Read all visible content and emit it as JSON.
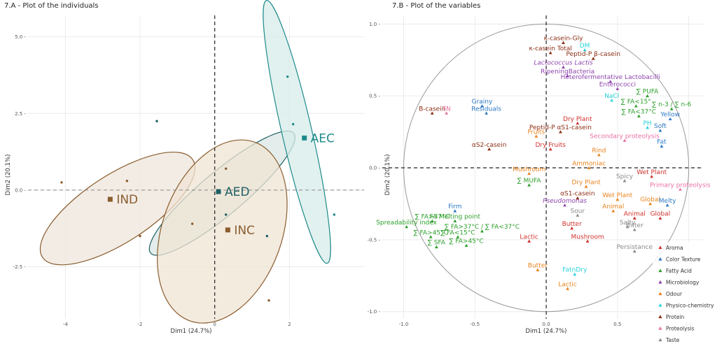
{
  "chart_data": [
    {
      "type": "scatter",
      "title": "7.A - Plot of the individuals",
      "xlabel": "Dim1 (24.7%)",
      "ylabel": "Dim2 (20.1%)",
      "xlim": [
        -5,
        4
      ],
      "ylim": [
        -4.2,
        5.7
      ],
      "x_ticks": [
        -4,
        -2,
        0,
        2
      ],
      "y_ticks": [
        -2.5,
        0.0,
        2.5,
        5.0
      ],
      "x_tick_labels": [
        "-4",
        "-2",
        "0",
        "2"
      ],
      "y_tick_labels": [
        "-2.5 -",
        "0.0 -",
        "2.5 -",
        "5.0 -"
      ],
      "groups": [
        {
          "name": "IND",
          "color": "#8a5d2e",
          "fill": "#ede6dc",
          "center": [
            -2.8,
            -0.3
          ],
          "ellipse": {
            "cx": -2.6,
            "cy": -0.6,
            "rx": 2.4,
            "ry": 1.1,
            "rot": -33
          },
          "points": [
            [
              -4.1,
              0.25
            ],
            [
              -2.35,
              0.3
            ],
            [
              -2.0,
              -1.5
            ]
          ]
        },
        {
          "name": "AED",
          "color": "#1f5f63",
          "fill": "#dbe7e6",
          "center": [
            0.1,
            -0.05
          ],
          "ellipse": {
            "cx": 0.2,
            "cy": -0.1,
            "rx": 2.5,
            "ry": 0.7,
            "rot": -40
          },
          "points": [
            [
              -1.55,
              2.25
            ],
            [
              0.3,
              -0.8
            ],
            [
              1.4,
              -1.5
            ]
          ]
        },
        {
          "name": "INC",
          "color": "#8a5d2e",
          "fill": "#f0e4d4",
          "center": [
            0.35,
            -1.3
          ],
          "ellipse": {
            "cx": 0.2,
            "cy": -1.35,
            "rx": 1.6,
            "ry": 3.1,
            "rot": 20
          },
          "points": [
            [
              -0.6,
              -1.1
            ],
            [
              0.3,
              0.7
            ],
            [
              1.45,
              -3.6
            ]
          ]
        },
        {
          "name": "AEC",
          "color": "#1f8a8a",
          "fill": "#d7ecea",
          "center": [
            2.4,
            1.7
          ],
          "ellipse": {
            "cx": 2.2,
            "cy": 1.9,
            "rx": 0.4,
            "ry": 4.4,
            "rot": -13
          },
          "points": [
            [
              1.95,
              3.7
            ],
            [
              2.1,
              2.15
            ],
            [
              3.2,
              -0.8
            ]
          ]
        }
      ]
    },
    {
      "type": "scatter",
      "title": "7.B - Plot of the variables",
      "xlabel": "Dim1 (24.7%)",
      "ylabel": "Dim2 (20.1%)",
      "xlim": [
        -1.15,
        1.1
      ],
      "ylim": [
        -1.05,
        1.06
      ],
      "x_ticks": [
        -1.0,
        -0.5,
        0.0,
        0.5,
        1.0
      ],
      "y_ticks": [
        -1.0,
        -0.5,
        0.0,
        0.5,
        1.0
      ],
      "x_tick_labels": [
        "-1.0",
        "-0.5",
        "0.0",
        "0.5",
        "1.0"
      ],
      "y_tick_labels": [
        "-1.0 -",
        "-0.5 -",
        "0.0 -",
        "0.5 -",
        "1.0 -"
      ],
      "legend_position": "right",
      "categories": [
        {
          "name": "Aroma",
          "color": "#d0312d"
        },
        {
          "name": "Color Texture",
          "color": "#2c78c4"
        },
        {
          "name": "Fatty Acid",
          "color": "#2ea02c"
        },
        {
          "name": "Microbiology",
          "color": "#8e44ad"
        },
        {
          "name": "Odour",
          "color": "#e8831c"
        },
        {
          "name": "Physico-chemistry",
          "color": "#27d3dc"
        },
        {
          "name": "Protein",
          "color": "#8b2e14"
        },
        {
          "name": "Proteolysis",
          "color": "#ea6fa3"
        },
        {
          "name": "Taste",
          "color": "#8a8a8a"
        }
      ],
      "points": [
        {
          "label": "κ-casein-Gly",
          "cat": "Protein",
          "x": 0.12,
          "y": 0.87,
          "size": 7.5
        },
        {
          "label": "κ-casein Total",
          "cat": "Protein",
          "x": 0.03,
          "y": 0.8,
          "size": 7.5
        },
        {
          "label": "DM",
          "cat": "Physico-chemistry",
          "x": 0.27,
          "y": 0.82,
          "size": 11
        },
        {
          "label": "Peptid-P β-casein",
          "cat": "Protein",
          "x": 0.33,
          "y": 0.76,
          "size": 7.5
        },
        {
          "label": "Lactococcus Lactis",
          "cat": "Microbiology",
          "x": 0.12,
          "y": 0.7,
          "size": 7.5,
          "italic": true
        },
        {
          "label": "RipeningBacteria",
          "cat": "Microbiology",
          "x": 0.15,
          "y": 0.64,
          "size": 7.5
        },
        {
          "label": "Heterofermentative Lactobacilli",
          "cat": "Microbiology",
          "x": 0.45,
          "y": 0.6,
          "size": 7.5
        },
        {
          "label": "Enterococci",
          "cat": "Microbiology",
          "x": 0.5,
          "y": 0.55,
          "size": 7.5
        },
        {
          "label": "Grainy",
          "cat": "Color Texture",
          "x": -0.45,
          "y": 0.43,
          "size": 9
        },
        {
          "label": "Residuals",
          "cat": "Color Texture",
          "x": -0.42,
          "y": 0.38,
          "size": 9
        },
        {
          "label": "B-casein",
          "cat": "Protein",
          "x": -0.8,
          "y": 0.38,
          "size": 8
        },
        {
          "label": "TN",
          "cat": "Proteolysis",
          "x": -0.7,
          "y": 0.38,
          "size": 9
        },
        {
          "label": "NaCl",
          "cat": "Physico-chemistry",
          "x": 0.46,
          "y": 0.47,
          "size": 7
        },
        {
          "label": "∑ PUFA",
          "cat": "Fatty Acid",
          "x": 0.71,
          "y": 0.5,
          "size": 7.5
        },
        {
          "label": "∑ FA<15°",
          "cat": "Fatty Acid",
          "x": 0.63,
          "y": 0.43,
          "size": 7.5
        },
        {
          "label": "∑ n-3 / ∑ n-6",
          "cat": "Fatty Acid",
          "x": 0.88,
          "y": 0.41,
          "size": 7.5
        },
        {
          "label": "∑ FA<37°C",
          "cat": "Fatty Acid",
          "x": 0.65,
          "y": 0.36,
          "size": 7.5
        },
        {
          "label": "Yellow",
          "cat": "Color Texture",
          "x": 0.87,
          "y": 0.34,
          "size": 8.5
        },
        {
          "label": "Dry Plant",
          "cat": "Aroma",
          "x": 0.22,
          "y": 0.31,
          "size": 8
        },
        {
          "label": "PH",
          "cat": "Physico-chemistry",
          "x": 0.71,
          "y": 0.28,
          "size": 10
        },
        {
          "label": "Soft",
          "cat": "Color Texture",
          "x": 0.8,
          "y": 0.26,
          "size": 9.5
        },
        {
          "label": "Peptid-P αS1-casein",
          "cat": "Protein",
          "x": 0.1,
          "y": 0.25,
          "size": 7.5
        },
        {
          "label": "Fruits",
          "cat": "Odour",
          "x": -0.07,
          "y": 0.22,
          "size": 8
        },
        {
          "label": "Secondary proteolysis",
          "cat": "Proteolysis",
          "x": 0.55,
          "y": 0.19,
          "size": 6.5
        },
        {
          "label": "αS2-casein",
          "cat": "Protein",
          "x": -0.4,
          "y": 0.13,
          "size": 8
        },
        {
          "label": "Dry Fruits",
          "cat": "Aroma",
          "x": 0.03,
          "y": 0.13,
          "size": 7.5
        },
        {
          "label": "Fat",
          "cat": "Color Texture",
          "x": 0.81,
          "y": 0.15,
          "size": 10
        },
        {
          "label": "Rind",
          "cat": "Odour",
          "x": 0.37,
          "y": 0.09,
          "size": 8
        },
        {
          "label": "Ammoniac",
          "cat": "Odour",
          "x": 0.3,
          "y": 0.0,
          "size": 7.5
        },
        {
          "label": "Mushroom",
          "cat": "Odour",
          "x": -0.12,
          "y": -0.04,
          "size": 7.5
        },
        {
          "label": "Dry Plant",
          "cat": "Odour",
          "x": 0.28,
          "y": -0.13,
          "size": 8
        },
        {
          "label": "Spicy",
          "cat": "Taste",
          "x": 0.55,
          "y": -0.09,
          "size": 8
        },
        {
          "label": "Wet Plant",
          "cat": "Aroma",
          "x": 0.74,
          "y": -0.06,
          "size": 8.5
        },
        {
          "label": "∑ MUFA",
          "cat": "Fatty Acid",
          "x": -0.12,
          "y": -0.12,
          "size": 8
        },
        {
          "label": "Primary proteolysis",
          "cat": "Proteolysis",
          "x": 0.94,
          "y": -0.15,
          "size": 6.5
        },
        {
          "label": "αS1-casein",
          "cat": "Protein",
          "x": 0.22,
          "y": -0.21,
          "size": 7.5
        },
        {
          "label": "Wet Plant",
          "cat": "Odour",
          "x": 0.5,
          "y": -0.22,
          "size": 7.5
        },
        {
          "label": "Global",
          "cat": "Odour",
          "x": 0.73,
          "y": -0.25,
          "size": 9.5
        },
        {
          "label": "Pseudomonas",
          "cat": "Microbiology",
          "x": 0.13,
          "y": -0.26,
          "size": 7.5,
          "italic": true
        },
        {
          "label": "Animal",
          "cat": "Odour",
          "x": 0.47,
          "y": -0.3,
          "size": 8.5
        },
        {
          "label": "Melty",
          "cat": "Color Texture",
          "x": 0.85,
          "y": -0.26,
          "size": 8.5
        },
        {
          "label": "Firm",
          "cat": "Color Texture",
          "x": -0.64,
          "y": -0.3,
          "size": 9
        },
        {
          "label": "Sour",
          "cat": "Taste",
          "x": 0.22,
          "y": -0.33,
          "size": 8
        },
        {
          "label": "Animal",
          "cat": "Aroma",
          "x": 0.62,
          "y": -0.35,
          "size": 8.5
        },
        {
          "label": "Global",
          "cat": "Aroma",
          "x": 0.8,
          "y": -0.35,
          "size": 8.5
        },
        {
          "label": "∑ FA>37°C",
          "cat": "Fatty Acid",
          "x": -0.8,
          "y": -0.37,
          "size": 7
        },
        {
          "label": "FA Melting point",
          "cat": "Fatty Acid",
          "x": -0.64,
          "y": -0.37,
          "size": 7.5
        },
        {
          "label": "Spreadability index",
          "cat": "Fatty Acid",
          "x": -0.98,
          "y": -0.41,
          "size": 6.5
        },
        {
          "label": "Butter",
          "cat": "Aroma",
          "x": 0.18,
          "y": -0.42,
          "size": 8.5
        },
        {
          "label": "Salty",
          "cat": "Taste",
          "x": 0.57,
          "y": -0.41,
          "size": 8.5
        },
        {
          "label": "Bitter",
          "cat": "Taste",
          "x": 0.62,
          "y": -0.43,
          "size": 8.5
        },
        {
          "label": "∑ FA>37°C / ∑ FA<37°C",
          "cat": "Fatty Acid",
          "x": -0.45,
          "y": -0.44,
          "size": 6.5
        },
        {
          "label": "∑ FA>45°C",
          "cat": "Fatty Acid",
          "x": -0.81,
          "y": -0.48,
          "size": 6.5
        },
        {
          "label": "∑ FA<15°C",
          "cat": "Fatty Acid",
          "x": -0.62,
          "y": -0.48,
          "size": 6.5
        },
        {
          "label": "Lactic",
          "cat": "Aroma",
          "x": -0.12,
          "y": -0.51,
          "size": 9.5
        },
        {
          "label": "Mushroom",
          "cat": "Aroma",
          "x": 0.29,
          "y": -0.51,
          "size": 8
        },
        {
          "label": "∑ SFA",
          "cat": "Fatty Acid",
          "x": -0.77,
          "y": -0.55,
          "size": 9
        },
        {
          "label": "∑ FA>45°C",
          "cat": "Fatty Acid",
          "x": -0.56,
          "y": -0.54,
          "size": 7.5
        },
        {
          "label": "Persistance",
          "cat": "Taste",
          "x": 0.62,
          "y": -0.58,
          "size": 7.5
        },
        {
          "label": "Butter",
          "cat": "Odour",
          "x": -0.06,
          "y": -0.71,
          "size": 8.5
        },
        {
          "label": "FatnDry",
          "cat": "Physico-chemistry",
          "x": 0.2,
          "y": -0.74,
          "size": 8.5
        },
        {
          "label": "Lactic",
          "cat": "Odour",
          "x": 0.15,
          "y": -0.84,
          "size": 9
        }
      ]
    }
  ]
}
